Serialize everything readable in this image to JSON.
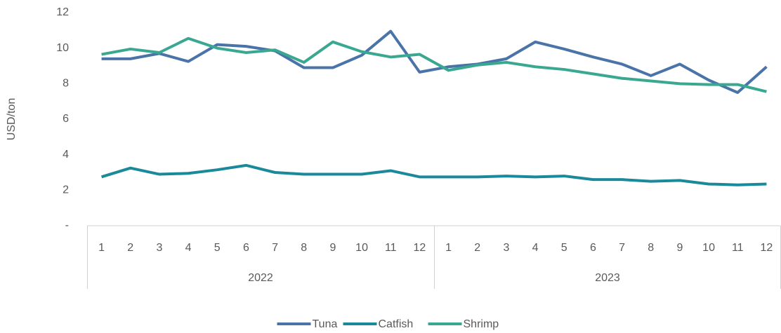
{
  "chart_data": {
    "type": "line",
    "y_label": "USD/ton",
    "categories": [
      "1",
      "2",
      "3",
      "4",
      "5",
      "6",
      "7",
      "8",
      "9",
      "10",
      "11",
      "12",
      "1",
      "2",
      "3",
      "4",
      "5",
      "6",
      "7",
      "8",
      "9",
      "10",
      "11",
      "12"
    ],
    "groups": [
      "2022",
      "2023"
    ],
    "ylim": [
      0,
      12
    ],
    "yticks": [
      {
        "value": 0,
        "label": "-"
      },
      2,
      4,
      6,
      8,
      10,
      12
    ],
    "legend": "bottom",
    "series": [
      {
        "name": "Tuna",
        "color": "#4a74a8",
        "values": [
          9.4,
          9.4,
          9.7,
          9.25,
          10.2,
          10.1,
          9.85,
          8.9,
          8.9,
          9.6,
          10.95,
          8.65,
          8.95,
          9.1,
          9.4,
          10.35,
          9.95,
          9.5,
          9.1,
          8.45,
          9.1,
          8.2,
          7.5,
          8.95
        ]
      },
      {
        "name": "Catfish",
        "color": "#1a8a9a",
        "values": [
          2.75,
          3.25,
          2.9,
          2.95,
          3.15,
          3.4,
          3.0,
          2.9,
          2.9,
          2.9,
          3.1,
          2.75,
          2.75,
          2.75,
          2.8,
          2.75,
          2.8,
          2.6,
          2.6,
          2.5,
          2.55,
          2.35,
          2.3,
          2.35
        ]
      },
      {
        "name": "Shrimp",
        "color": "#3aa890",
        "values": [
          9.65,
          9.95,
          9.75,
          10.55,
          10.0,
          9.75,
          9.9,
          9.2,
          10.35,
          9.8,
          9.5,
          9.65,
          8.75,
          9.05,
          9.2,
          8.95,
          8.8,
          8.55,
          8.3,
          8.15,
          8.0,
          7.95,
          7.95,
          7.55
        ]
      }
    ]
  }
}
